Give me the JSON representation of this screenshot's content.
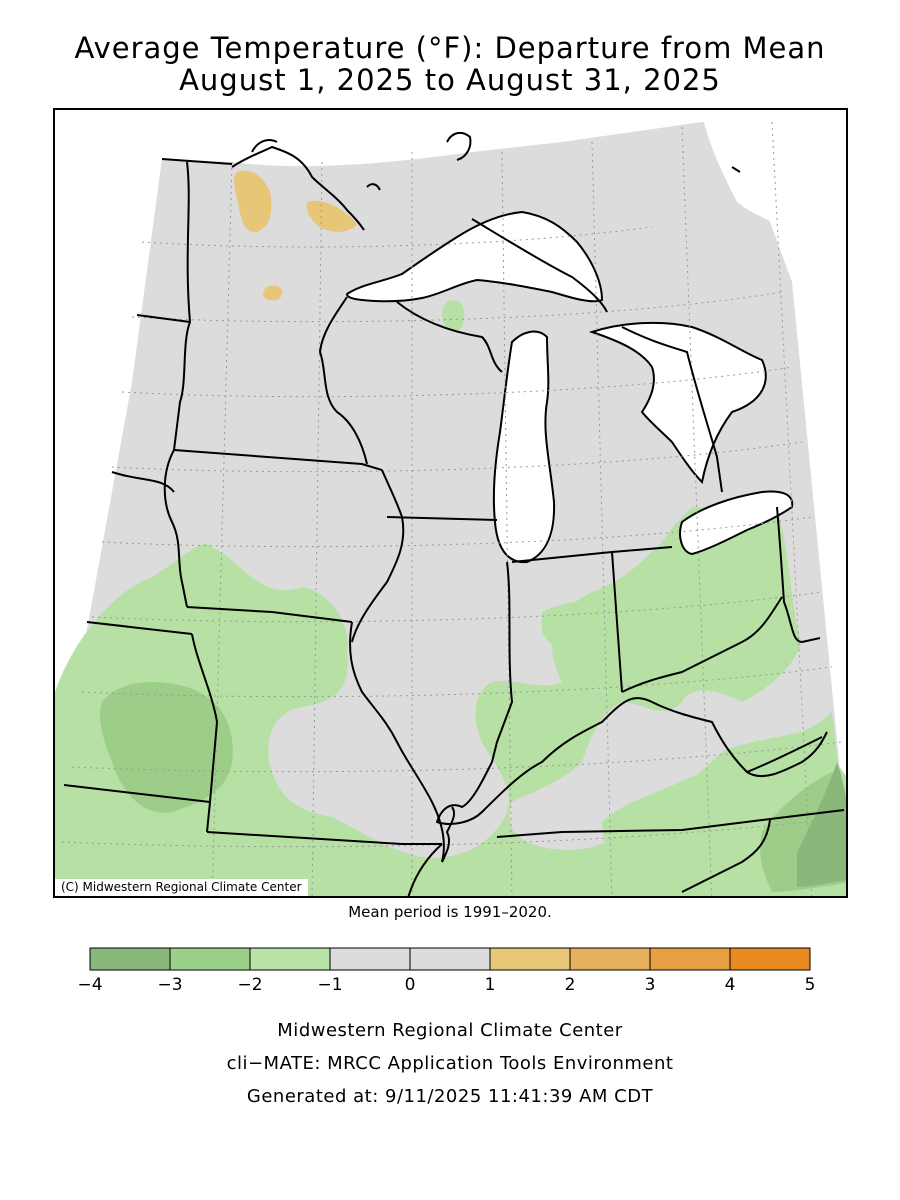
{
  "title": {
    "line1": "Average Temperature (°F): Departure from Mean",
    "line2": "August 1, 2025 to August 31, 2025"
  },
  "map": {
    "copyright": "(C) Midwestern Regional Climate Center",
    "colors": {
      "land_near_normal": "#dcdcdc",
      "water": "#ffffff",
      "minus1_to_minus2": "#b6e0a4",
      "minus2_to_minus3": "#9cce8a",
      "minus3_to_minus4": "#8ab87a",
      "plus1_to_plus2": "#e8c678"
    }
  },
  "mean_period": "Mean period is 1991–2020.",
  "legend": {
    "bins": [
      {
        "from": -4,
        "to": -3,
        "color": "#8ab87a"
      },
      {
        "from": -3,
        "to": -2,
        "color": "#9ccf8a"
      },
      {
        "from": -2,
        "to": -1,
        "color": "#b8e2a6"
      },
      {
        "from": -1,
        "to": 0,
        "color": "#dcdcdc"
      },
      {
        "from": 0,
        "to": 1,
        "color": "#dcdcdc"
      },
      {
        "from": 1,
        "to": 2,
        "color": "#e8c778"
      },
      {
        "from": 2,
        "to": 3,
        "color": "#e6b060"
      },
      {
        "from": 3,
        "to": 4,
        "color": "#e79f44"
      },
      {
        "from": 4,
        "to": 5,
        "color": "#e88a22"
      }
    ],
    "tick_labels": [
      "−4",
      "−3",
      "−2",
      "−1",
      "0",
      "1",
      "2",
      "3",
      "4",
      "5"
    ]
  },
  "footer": {
    "line1": "Midwestern Regional Climate Center",
    "line2": "cli−MATE: MRCC Application Tools Environment",
    "line3": "Generated at: 9/11/2025 11:41:39 AM CDT"
  }
}
